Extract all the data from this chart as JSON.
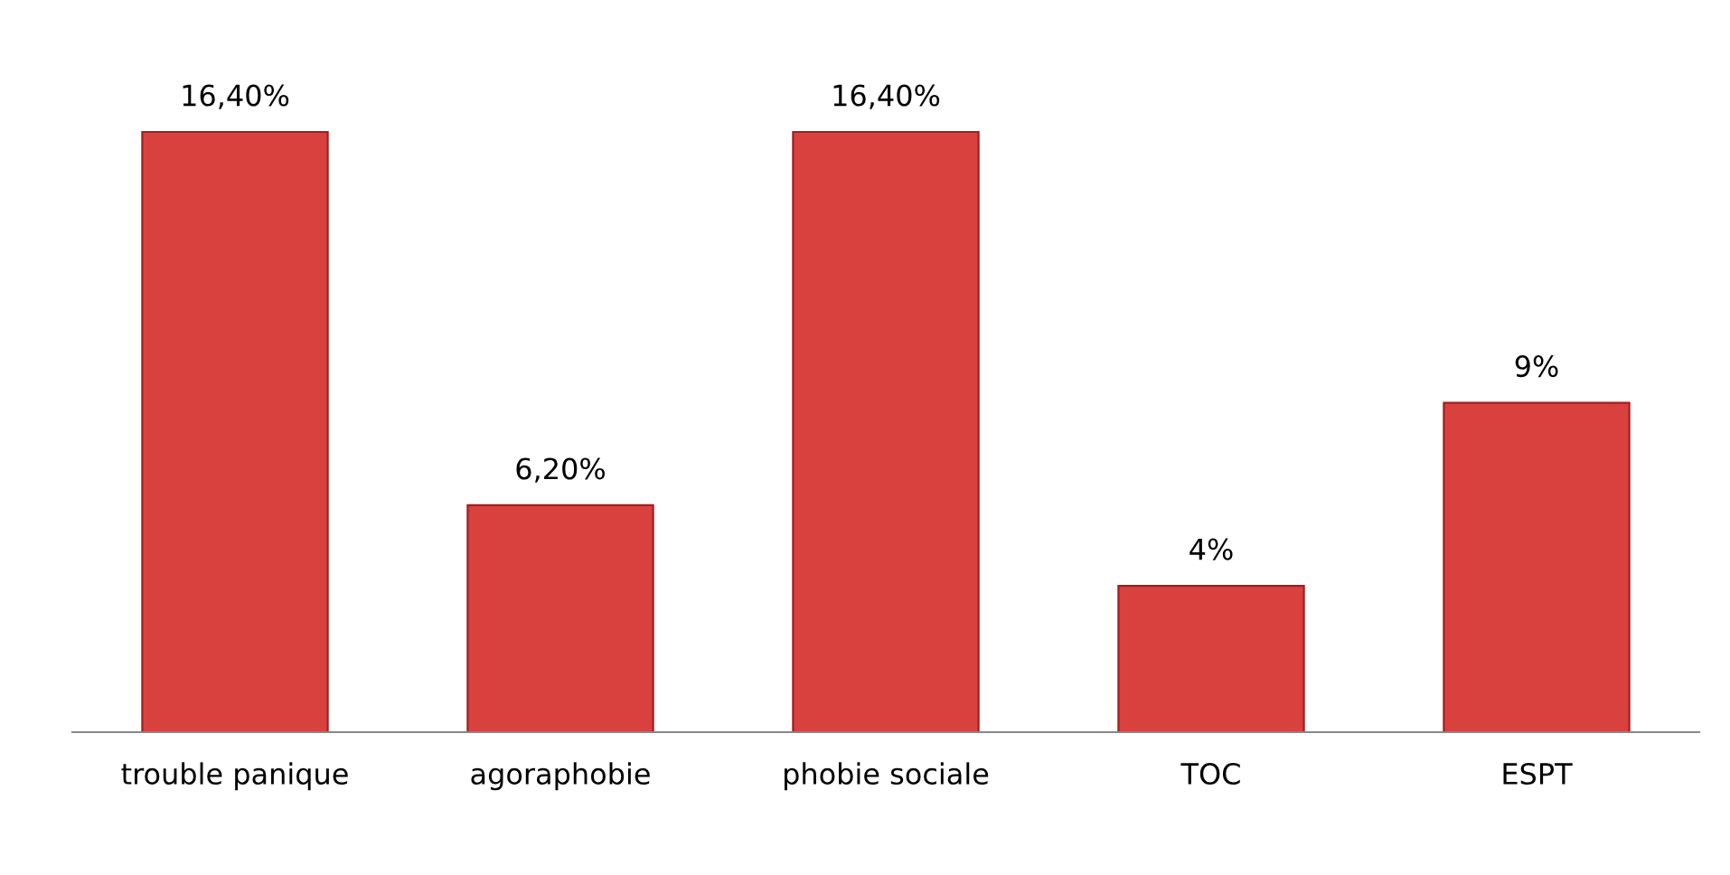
{
  "chart_data": {
    "type": "bar",
    "categories": [
      "trouble panique",
      "agoraphobie",
      "phobie sociale",
      "TOC",
      "ESPT"
    ],
    "values": [
      16.4,
      6.2,
      16.4,
      4,
      9
    ],
    "value_labels": [
      "16,40%",
      "6,20%",
      "16,40%",
      "4%",
      "9%"
    ],
    "color": "#d9413f",
    "grid": false,
    "legend": false
  }
}
